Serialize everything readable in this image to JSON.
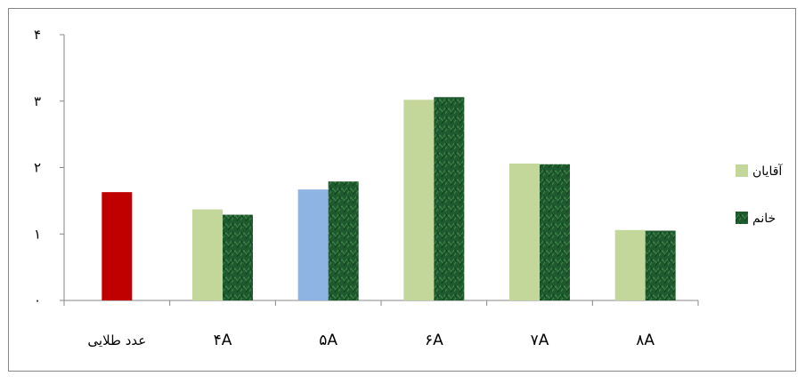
{
  "chart_data": {
    "type": "bar",
    "title": "",
    "xlabel": "",
    "ylabel": "",
    "ylim": [
      0,
      4
    ],
    "y_ticks": [
      0,
      1,
      2,
      3,
      4
    ],
    "y_tick_labels": [
      "۰",
      "۱",
      "۲",
      "۳",
      "۴"
    ],
    "categories": [
      "عدد طلایی",
      "۴A",
      "۵A",
      "۶A",
      "۷A",
      "۸A"
    ],
    "golden_value": 1.63,
    "golden_color": "#c00000",
    "highlight_color": "#8db4e2",
    "series": [
      {
        "name": "آقایان",
        "values": [
          null,
          1.37,
          1.67,
          3.02,
          2.06,
          1.06
        ],
        "color": "#c4d79b"
      },
      {
        "name": "خانم",
        "values": [
          null,
          1.29,
          1.79,
          3.06,
          2.05,
          1.05
        ],
        "color": "#1f5a2e"
      }
    ],
    "highlight_index": 2,
    "legend_position": "right",
    "grid": false
  }
}
